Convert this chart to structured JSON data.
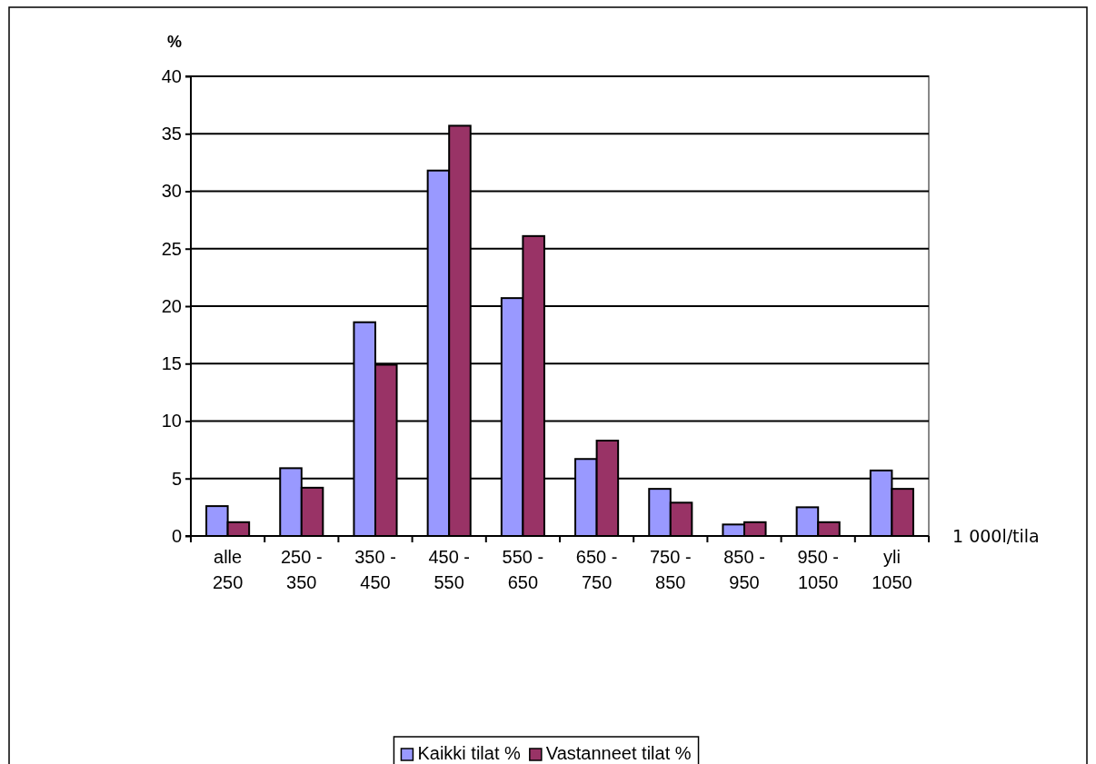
{
  "chart_data": {
    "type": "bar",
    "xlabel": "1 000l/tila",
    "ylabel": "%",
    "categories": [
      "alle 250",
      "250 - 350",
      "350 - 450",
      "450 - 550",
      "550 - 650",
      "650 - 750",
      "750 - 850",
      "850 - 950",
      "950 - 1050",
      "yli 1050"
    ],
    "series": [
      {
        "name": "Kaikki tilat %",
        "color": "#9999ff",
        "values": [
          2.6,
          5.9,
          18.6,
          31.8,
          20.7,
          6.7,
          4.1,
          1.0,
          2.5,
          5.7
        ]
      },
      {
        "name": "Vastanneet tilat %",
        "color": "#993366",
        "values": [
          1.2,
          4.2,
          14.9,
          35.7,
          26.1,
          8.3,
          2.9,
          1.2,
          1.2,
          4.1
        ]
      }
    ],
    "ylim": [
      0,
      40
    ],
    "yticks": [
      0,
      5,
      10,
      15,
      20,
      25,
      30,
      35,
      40
    ],
    "grid": "y",
    "legend": "bottom"
  }
}
